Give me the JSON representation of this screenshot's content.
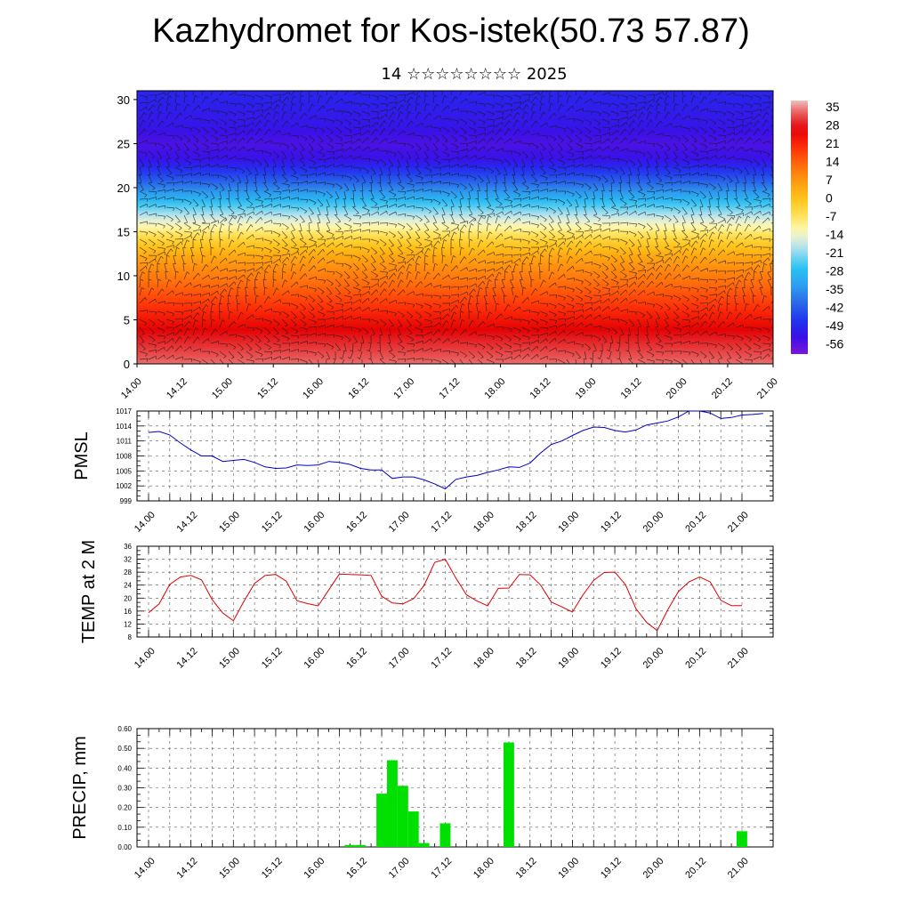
{
  "title": "Kazhydromet for Kos-istek(50.73 57.87)",
  "subtitle": "14 ☆☆☆☆☆☆☆☆ 2025",
  "colors": {
    "pmsl_line": "#0000cc",
    "temp_line": "#dd0000",
    "precip_bar": "#00e000"
  },
  "chart_data": [
    {
      "type": "heatmap",
      "xlabel": "",
      "ylabel": "",
      "x_tick_labels": [
        "14.00",
        "14.12",
        "15.00",
        "15.12",
        "16.00",
        "16.12",
        "17.00",
        "17.12",
        "18.00",
        "18.12",
        "19.00",
        "19.12",
        "20.00",
        "20.12",
        "21.00"
      ],
      "y_ticks": [
        0,
        5,
        10,
        15,
        20,
        25,
        30
      ],
      "ylim": [
        0,
        31
      ],
      "wind_barbs": true,
      "colorbar": {
        "labels": [
          "35",
          "28",
          "21",
          "14",
          "7",
          "0",
          "-7",
          "-14",
          "-21",
          "-28",
          "-35",
          "-42",
          "-49",
          "-56"
        ],
        "range": [
          -63,
          40
        ]
      },
      "temperature_by_level": [
        [
          0,
          36
        ],
        [
          3,
          30
        ],
        [
          6,
          22
        ],
        [
          9,
          14
        ],
        [
          12,
          6
        ],
        [
          14,
          -3
        ],
        [
          15.5,
          -12
        ],
        [
          17,
          -20
        ],
        [
          19,
          -33
        ],
        [
          21,
          -45
        ],
        [
          23,
          -55
        ],
        [
          25,
          -58
        ],
        [
          27,
          -55
        ],
        [
          31,
          -52
        ]
      ]
    },
    {
      "type": "line",
      "ylabel": "PMSL",
      "y_ticks": [
        999,
        1002,
        1005,
        1008,
        1011,
        1014,
        1017
      ],
      "ylim": [
        999,
        1017
      ],
      "x_tick_labels": [
        "14.00",
        "14.12",
        "15.00",
        "15.12",
        "16.00",
        "16.12",
        "17.00",
        "17.12",
        "18.00",
        "18.12",
        "19.00",
        "19.12",
        "20.00",
        "20.12",
        "21.00"
      ],
      "series": [
        {
          "values": [
            1012.7,
            1012.9,
            1012.2,
            1010.6,
            1009.2,
            1008.0,
            1008.0,
            1006.9,
            1007.1,
            1007.3,
            1006.7,
            1005.8,
            1005.5,
            1005.6,
            1006.2,
            1006.1,
            1006.2,
            1006.9,
            1006.7,
            1006.3,
            1005.5,
            1005.2,
            1005.2,
            1003.5,
            1003.8,
            1003.8,
            1003.2,
            1002.4,
            1001.4,
            1003.3,
            1003.8,
            1004.1,
            1004.7,
            1005.2,
            1005.8,
            1005.7,
            1006.6,
            1008.6,
            1010.3,
            1011.0,
            1012.1,
            1013.1,
            1013.8,
            1013.7,
            1013.1,
            1012.8,
            1013.2,
            1014.2,
            1014.6,
            1015.0,
            1015.8,
            1017.0,
            1017.0,
            1016.6,
            1015.5,
            1015.7,
            1016.2,
            1016.3,
            1016.5
          ]
        }
      ]
    },
    {
      "type": "line",
      "ylabel": "TEMP at 2 M",
      "y_ticks": [
        8,
        12,
        16,
        20,
        24,
        28,
        32,
        36
      ],
      "ylim": [
        8,
        36
      ],
      "x_tick_labels": [
        "14.00",
        "14.12",
        "15.00",
        "15.12",
        "16.00",
        "16.12",
        "17.00",
        "17.12",
        "18.00",
        "18.12",
        "19.00",
        "19.12",
        "20.00",
        "20.12",
        "21.00"
      ],
      "series": [
        {
          "values": [
            15.5,
            18.2,
            24.2,
            26.5,
            27.0,
            25.6,
            19.5,
            15.4,
            13.0,
            19.0,
            24.5,
            27.0,
            27.3,
            25.2,
            19.2,
            18.3,
            17.6,
            22.5,
            27.4,
            27.3,
            27.2,
            27.0,
            20.6,
            18.5,
            18.2,
            19.8,
            23.9,
            31.0,
            32.0,
            26.2,
            21.0,
            19.1,
            17.6,
            23.0,
            23.1,
            27.3,
            27.2,
            24.0,
            18.8,
            17.3,
            15.7,
            21.0,
            25.5,
            27.9,
            28.0,
            24.2,
            16.7,
            12.5,
            10.0,
            16.4,
            22.0,
            25.0,
            26.5,
            25.0,
            19.3,
            17.7,
            17.7
          ]
        }
      ]
    },
    {
      "type": "bar",
      "ylabel": "PRECIP, mm",
      "y_tick_labels": [
        "0.00",
        "0.10",
        "0.20",
        "0.30",
        "0.40",
        "0.50",
        "0.60"
      ],
      "ylim": [
        0,
        0.6
      ],
      "x_tick_labels": [
        "14.00",
        "14.12",
        "15.00",
        "15.12",
        "16.00",
        "16.12",
        "17.00",
        "17.12",
        "18.00",
        "18.12",
        "19.00",
        "19.12",
        "20.00",
        "20.12",
        "21.00"
      ],
      "bars": [
        {
          "x": 19,
          "value": 0.01
        },
        {
          "x": 20,
          "value": 0.01
        },
        {
          "x": 22,
          "value": 0.27
        },
        {
          "x": 23,
          "value": 0.44
        },
        {
          "x": 24,
          "value": 0.31
        },
        {
          "x": 25,
          "value": 0.18
        },
        {
          "x": 26,
          "value": 0.02
        },
        {
          "x": 28,
          "value": 0.12
        },
        {
          "x": 34,
          "value": 0.53
        },
        {
          "x": 56,
          "value": 0.08
        }
      ]
    }
  ]
}
